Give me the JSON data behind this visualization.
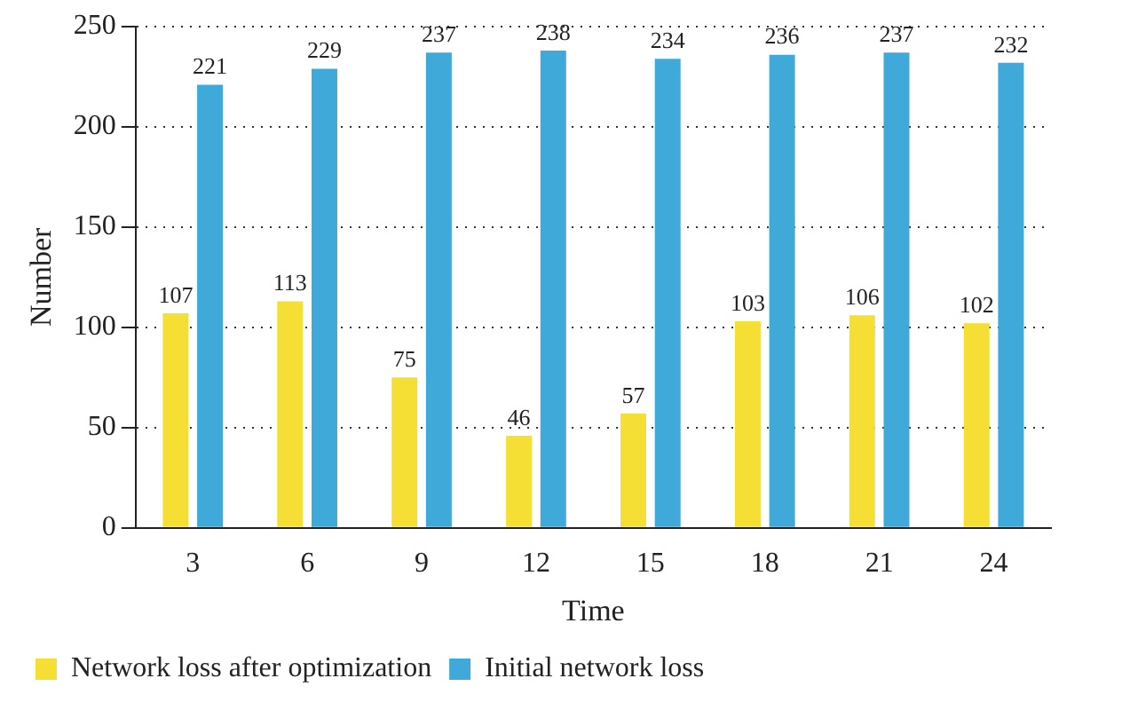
{
  "chart_data": {
    "type": "bar",
    "xlabel": "Time",
    "ylabel": "Number",
    "categories": [
      "3",
      "6",
      "9",
      "12",
      "15",
      "18",
      "21",
      "24"
    ],
    "series": [
      {
        "name": "Network loss after optimization",
        "color": "#f6df34",
        "values": [
          107,
          113,
          75,
          46,
          57,
          103,
          106,
          102
        ]
      },
      {
        "name": "Initial network loss",
        "color": "#3fa9da",
        "values": [
          221,
          229,
          237,
          238,
          234,
          236,
          237,
          232
        ]
      }
    ],
    "ylim": [
      0,
      250
    ],
    "yticks": [
      0,
      50,
      100,
      150,
      200,
      250
    ],
    "grid": "y",
    "legend": "bottom",
    "data_labels": true
  }
}
